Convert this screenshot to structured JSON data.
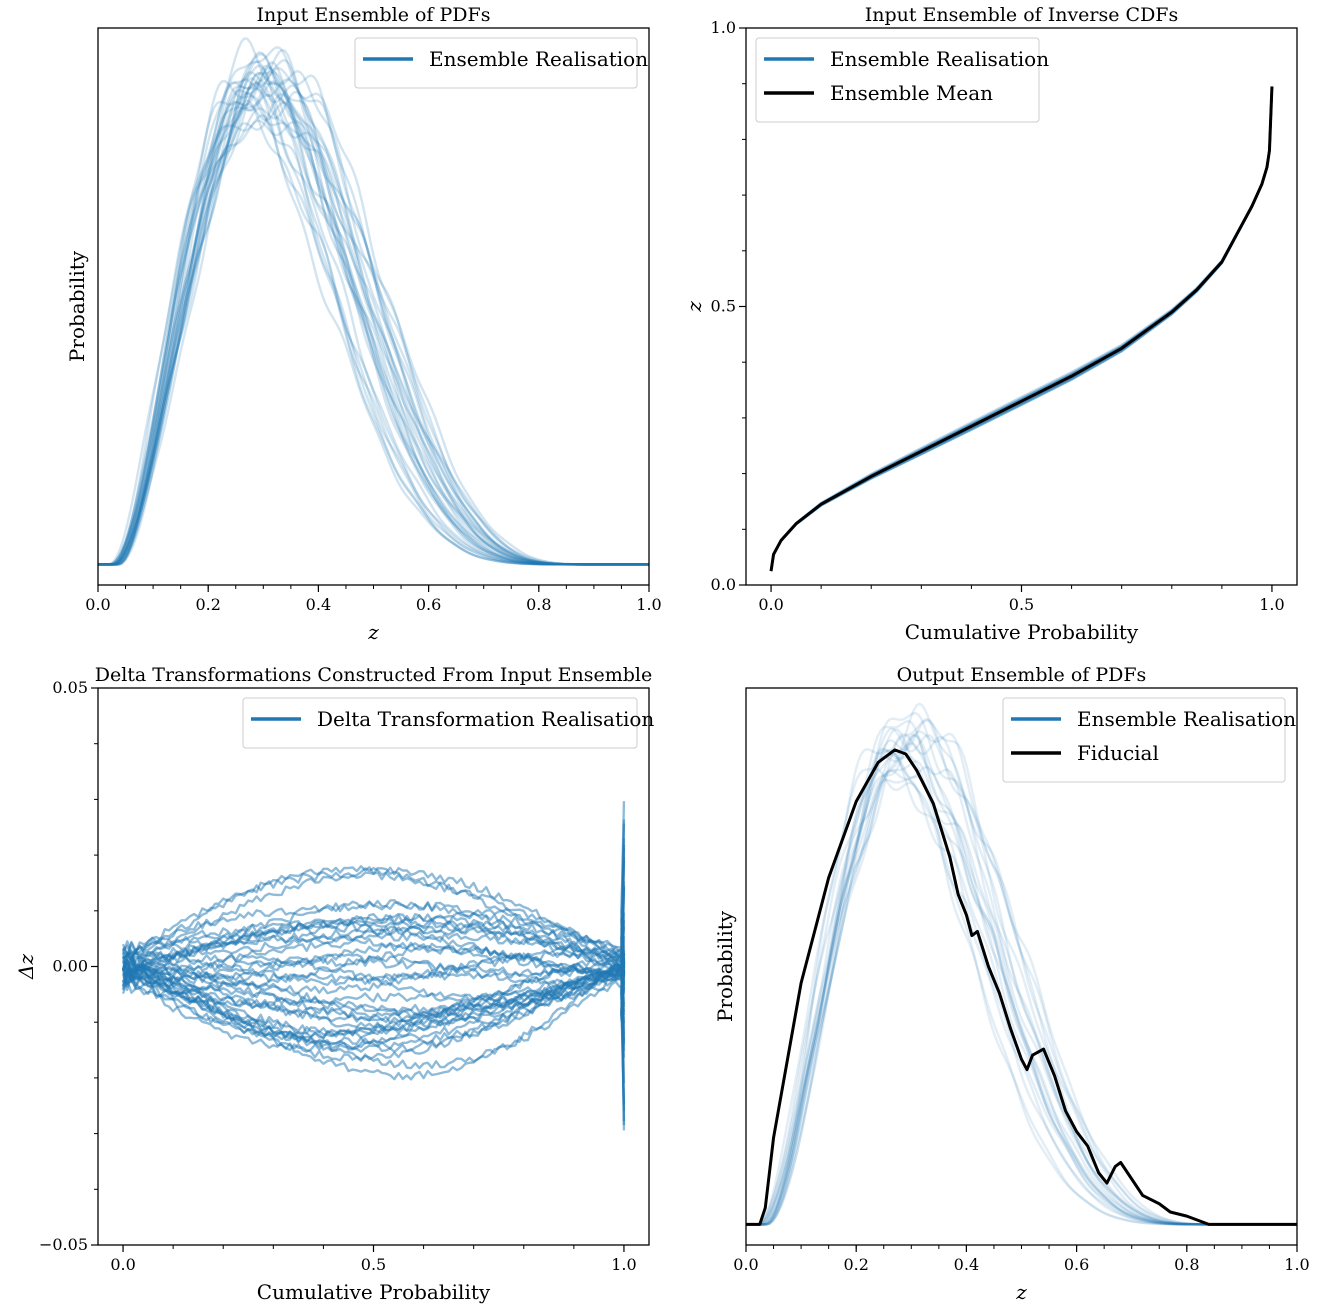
{
  "colors": {
    "realisation": "#1f77b4",
    "mean": "#000000",
    "legend_border": "#cccccc"
  },
  "chart_data": [
    {
      "id": "top-left",
      "type": "line",
      "title": "Input Ensemble of PDFs",
      "xlabel": "z",
      "ylabel": "Probability",
      "xlim": [
        0,
        1
      ],
      "ylim": [
        -0.1,
        2.6
      ],
      "xticks": [
        0.0,
        0.2,
        0.4,
        0.6,
        0.8,
        1.0
      ],
      "xtick_labels": [
        "0.0",
        "0.2",
        "0.4",
        "0.6",
        "0.8",
        "1.0"
      ],
      "yticks": [],
      "ytick_labels": [],
      "legend_position": "top-right",
      "legend": [
        {
          "label": "Ensemble Realisation",
          "color": "#1f77b4"
        }
      ],
      "ensemble": {
        "count": 30,
        "opacity": 0.2,
        "shape": "pdf",
        "peak_range": [
          0.26,
          0.33
        ],
        "width_range": [
          0.9,
          1.12
        ],
        "height_range": [
          2.14,
          2.46
        ],
        "zmin_range": [
          0.02,
          0.04
        ],
        "zmax": 0.9
      },
      "series": []
    },
    {
      "id": "top-right",
      "type": "line",
      "title": "Input Ensemble of Inverse CDFs",
      "xlabel": "Cumulative Probability",
      "ylabel": "z",
      "xlim": [
        -0.05,
        1.05
      ],
      "ylim": [
        0.0,
        1.0
      ],
      "xticks": [
        0.0,
        0.5,
        1.0
      ],
      "xtick_labels": [
        "0.0",
        "0.5",
        "1.0"
      ],
      "yticks": [
        0.0,
        0.5,
        1.0
      ],
      "ytick_labels": [
        "0.0",
        "0.5",
        "1.0"
      ],
      "legend_position": "top-left",
      "legend": [
        {
          "label": "Ensemble Realisation",
          "color": "#1f77b4"
        },
        {
          "label": "Ensemble Mean",
          "color": "#000000"
        }
      ],
      "ensemble": {
        "count": 30,
        "opacity": 0.15,
        "shape": "icdf"
      },
      "series": [
        {
          "name": "Ensemble Mean",
          "color": "#000000",
          "x": [
            0.0,
            0.005,
            0.02,
            0.05,
            0.1,
            0.15,
            0.2,
            0.3,
            0.4,
            0.5,
            0.6,
            0.7,
            0.8,
            0.85,
            0.9,
            0.93,
            0.96,
            0.98,
            0.99,
            0.995,
            1.0
          ],
          "y": [
            0.025,
            0.055,
            0.08,
            0.11,
            0.145,
            0.17,
            0.195,
            0.24,
            0.285,
            0.33,
            0.375,
            0.425,
            0.49,
            0.53,
            0.58,
            0.63,
            0.68,
            0.72,
            0.75,
            0.78,
            0.895
          ]
        }
      ]
    },
    {
      "id": "bottom-left",
      "type": "line",
      "title": "Delta Transformations Constructed From Input Ensemble",
      "xlabel": "Cumulative Probability",
      "ylabel": "Δz",
      "xlim": [
        -0.05,
        1.05
      ],
      "ylim": [
        -0.05,
        0.05
      ],
      "xticks": [
        0.0,
        0.5,
        1.0
      ],
      "xtick_labels": [
        "0.0",
        "0.5",
        "1.0"
      ],
      "yticks": [
        -0.05,
        0.0,
        0.05
      ],
      "ytick_labels": [
        "−0.05",
        "0.00",
        "0.05"
      ],
      "legend_position": "top-right",
      "legend": [
        {
          "label": "Delta Transformation Realisation",
          "color": "#1f77b4"
        }
      ],
      "ensemble": {
        "count": 40,
        "opacity": 0.5,
        "shape": "delta",
        "amp_range": [
          -0.019,
          0.02
        ]
      },
      "series": []
    },
    {
      "id": "bottom-right",
      "type": "line",
      "title": "Output Ensemble of PDFs",
      "xlabel": "z",
      "ylabel": "Probability",
      "xlim": [
        0,
        1
      ],
      "ylim": [
        -0.1,
        2.6
      ],
      "xticks": [
        0.0,
        0.2,
        0.4,
        0.6,
        0.8,
        1.0
      ],
      "xtick_labels": [
        "0.0",
        "0.2",
        "0.4",
        "0.6",
        "0.8",
        "1.0"
      ],
      "yticks": [],
      "ytick_labels": [],
      "legend_position": "top-right",
      "legend": [
        {
          "label": "Ensemble Realisation",
          "color": "#1f77b4"
        },
        {
          "label": "Fiducial",
          "color": "#000000"
        }
      ],
      "ensemble": {
        "count": 20,
        "opacity": 0.13,
        "shape": "pdf",
        "peak_range": [
          0.25,
          0.32
        ],
        "width_range": [
          0.92,
          1.1
        ],
        "height_range": [
          2.1,
          2.45
        ],
        "zmin_range": [
          0.02,
          0.04
        ],
        "zmax": 0.86
      },
      "series": [
        {
          "name": "Fiducial",
          "color": "#000000",
          "x": [
            0.0,
            0.025,
            0.035,
            0.05,
            0.1,
            0.15,
            0.2,
            0.24,
            0.27,
            0.29,
            0.31,
            0.34,
            0.37,
            0.385,
            0.4,
            0.41,
            0.42,
            0.44,
            0.46,
            0.48,
            0.5,
            0.51,
            0.52,
            0.54,
            0.56,
            0.58,
            0.6,
            0.62,
            0.64,
            0.655,
            0.67,
            0.68,
            0.7,
            0.72,
            0.75,
            0.77,
            0.8,
            0.82,
            0.84,
            1.0
          ],
          "y": [
            0.0,
            0.0,
            0.08,
            0.42,
            1.17,
            1.68,
            2.05,
            2.24,
            2.3,
            2.28,
            2.2,
            2.04,
            1.78,
            1.6,
            1.5,
            1.4,
            1.42,
            1.25,
            1.12,
            0.95,
            0.8,
            0.75,
            0.82,
            0.85,
            0.72,
            0.55,
            0.45,
            0.38,
            0.25,
            0.2,
            0.28,
            0.3,
            0.22,
            0.14,
            0.1,
            0.06,
            0.04,
            0.02,
            0.0,
            0.0
          ]
        }
      ]
    }
  ]
}
